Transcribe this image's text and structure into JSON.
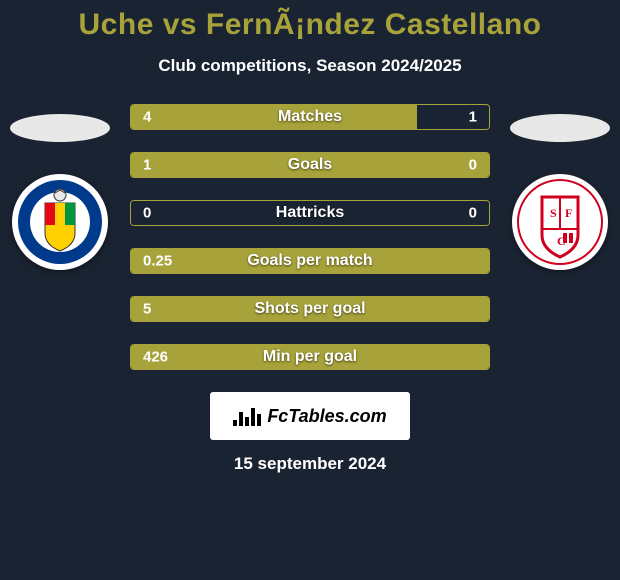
{
  "colors": {
    "background": "#1a2332",
    "title": "#a7a23a",
    "text": "#ffffff",
    "bar_border": "#a7a23a",
    "bar_fill": "#a7a23a",
    "bar_empty": "#1a2332",
    "ellipse": "#e8e8e8",
    "brand_bg": "#ffffff",
    "brand_text": "#000000"
  },
  "header": {
    "title": "Uche vs FernÃ¡ndez Castellano",
    "subtitle": "Club competitions, Season 2024/2025"
  },
  "left_crest": {
    "name": "getafe-crest",
    "label": "GETAFE C.F.",
    "ring_color": "#003a8c",
    "inner_stripes": [
      "#e30613",
      "#ffd100",
      "#009640"
    ]
  },
  "right_crest": {
    "name": "sevilla-crest",
    "label": "S.F.C",
    "ring_color": "#ffffff",
    "accent_color": "#d2001f"
  },
  "stats": [
    {
      "label": "Matches",
      "left_val": "4",
      "right_val": "1",
      "left_fill_pct": 80,
      "right_fill_pct": 20
    },
    {
      "label": "Goals",
      "left_val": "1",
      "right_val": "0",
      "left_fill_pct": 100,
      "right_fill_pct": 0
    },
    {
      "label": "Hattricks",
      "left_val": "0",
      "right_val": "0",
      "left_fill_pct": 0,
      "right_fill_pct": 0
    },
    {
      "label": "Goals per match",
      "left_val": "0.25",
      "right_val": "",
      "left_fill_pct": 100,
      "right_fill_pct": 0
    },
    {
      "label": "Shots per goal",
      "left_val": "5",
      "right_val": "",
      "left_fill_pct": 100,
      "right_fill_pct": 0
    },
    {
      "label": "Min per goal",
      "left_val": "426",
      "right_val": "",
      "left_fill_pct": 100,
      "right_fill_pct": 0
    }
  ],
  "footer": {
    "brand": "FcTables.com",
    "date": "15 september 2024"
  },
  "typography": {
    "title_fontsize": 30,
    "subtitle_fontsize": 17,
    "stat_label_fontsize": 16,
    "stat_value_fontsize": 15,
    "footer_brand_fontsize": 18,
    "footer_date_fontsize": 17
  }
}
